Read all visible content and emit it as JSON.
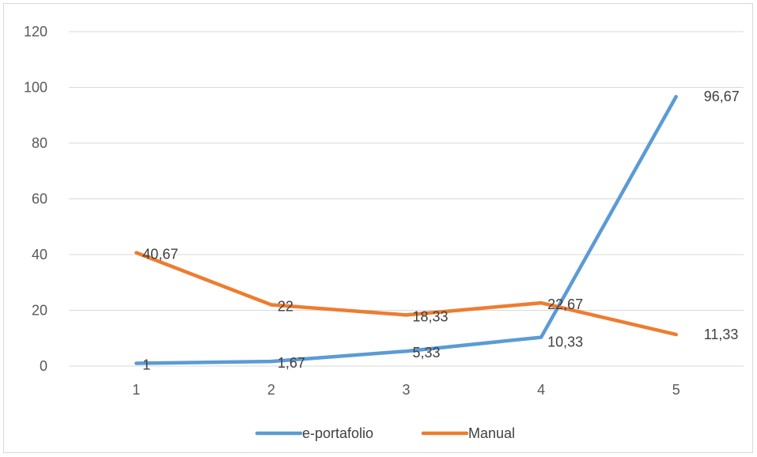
{
  "chart_data": {
    "type": "line",
    "categories": [
      "1",
      "2",
      "3",
      "4",
      "5"
    ],
    "series": [
      {
        "name": "e-portafolio",
        "color": "#5b9bd5",
        "values": [
          1,
          1.67,
          5.33,
          10.33,
          96.67
        ],
        "labels": [
          "1",
          "1,67",
          "5,33",
          "10,33",
          "96,67"
        ]
      },
      {
        "name": "Manual",
        "color": "#ed7d31",
        "values": [
          40.67,
          22,
          18.33,
          22.67,
          11.33
        ],
        "labels": [
          "40,67",
          "22",
          "18,33",
          "22,67",
          "11,33"
        ]
      }
    ],
    "ylim": [
      0,
      120
    ],
    "yticks": [
      "0",
      "20",
      "40",
      "60",
      "80",
      "100",
      "120"
    ],
    "grid": true,
    "legend": "bottom",
    "gridline_color": "#d9d9d9"
  }
}
